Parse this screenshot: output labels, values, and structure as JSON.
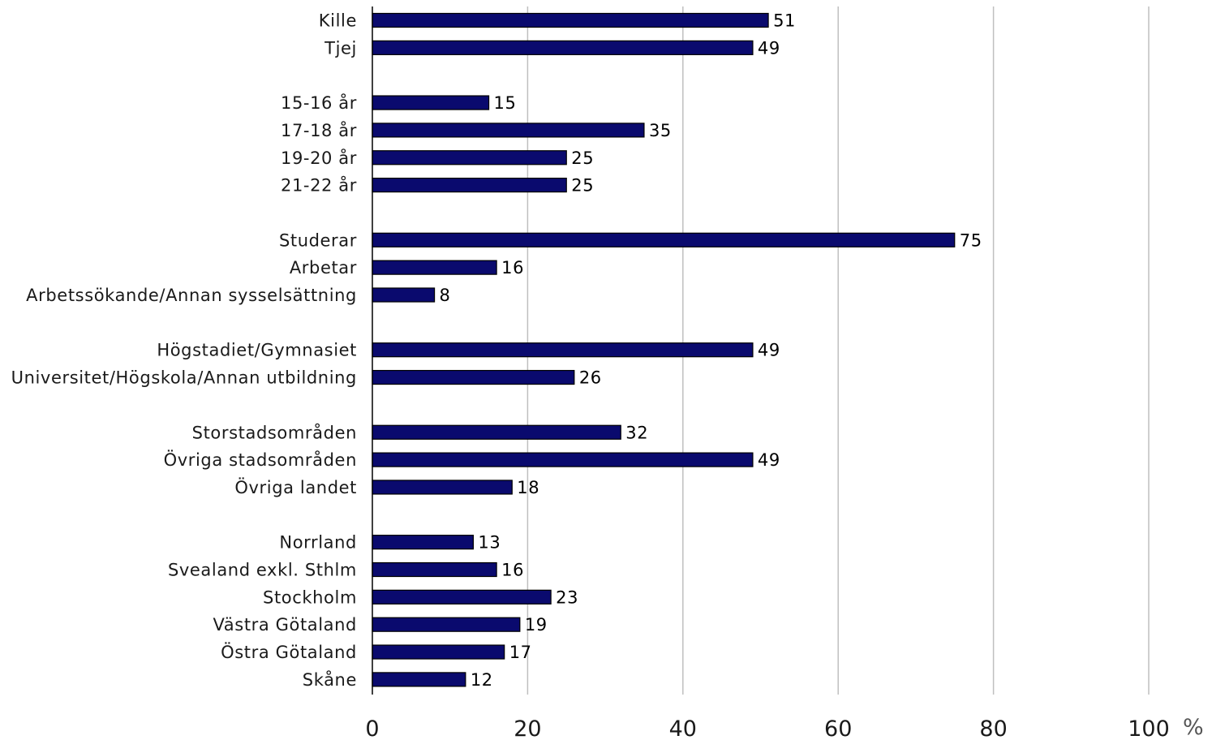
{
  "chart_data": {
    "type": "bar",
    "orientation": "horizontal",
    "unit": "%",
    "xlim": [
      0,
      100
    ],
    "xticks": [
      0,
      20,
      40,
      60,
      80,
      100
    ],
    "grid": true,
    "bar_color": "#0a0a6e",
    "bar_edge_color": "#000000",
    "grid_color": "#bfbfbf",
    "groups": [
      {
        "items": [
          {
            "label": "Kille",
            "value": 51
          },
          {
            "label": "Tjej",
            "value": 49
          }
        ]
      },
      {
        "items": [
          {
            "label": "15-16 år",
            "value": 15
          },
          {
            "label": "17-18 år",
            "value": 35
          },
          {
            "label": "19-20 år",
            "value": 25
          },
          {
            "label": "21-22 år",
            "value": 25
          }
        ]
      },
      {
        "items": [
          {
            "label": "Studerar",
            "value": 75
          },
          {
            "label": "Arbetar",
            "value": 16
          },
          {
            "label": "Arbetssökande/Annan sysselsättning",
            "value": 8
          }
        ]
      },
      {
        "items": [
          {
            "label": "Högstadiet/Gymnasiet",
            "value": 49
          },
          {
            "label": "Universitet/Högskola/Annan utbildning",
            "value": 26
          }
        ]
      },
      {
        "items": [
          {
            "label": "Storstadsområden",
            "value": 32
          },
          {
            "label": "Övriga stadsområden",
            "value": 49
          },
          {
            "label": "Övriga landet",
            "value": 18
          }
        ]
      },
      {
        "items": [
          {
            "label": "Norrland",
            "value": 13
          },
          {
            "label": "Svealand exkl. Sthlm",
            "value": 16
          },
          {
            "label": "Stockholm",
            "value": 23
          },
          {
            "label": "Västra Götaland",
            "value": 19
          },
          {
            "label": "Östra Götaland",
            "value": 17
          },
          {
            "label": "Skåne",
            "value": 12
          }
        ]
      }
    ]
  }
}
